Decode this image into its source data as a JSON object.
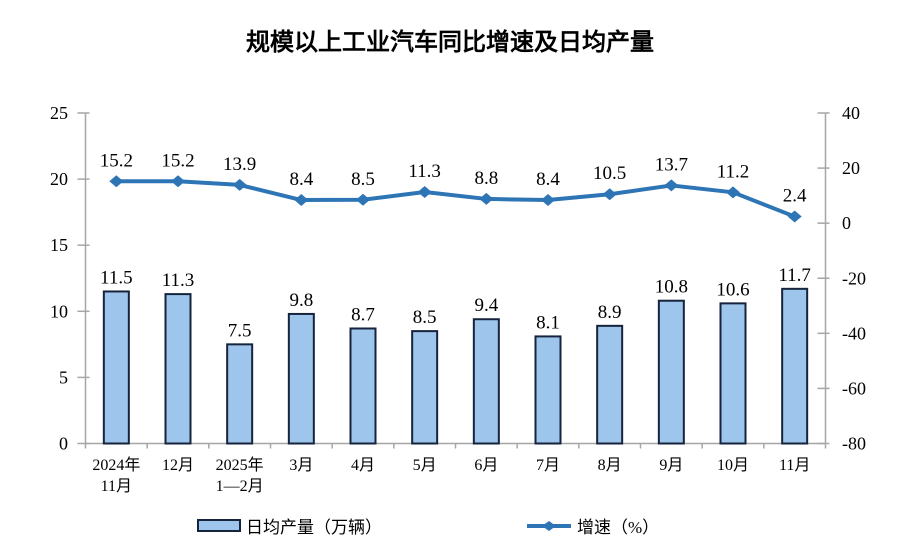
{
  "title": "规模以上工业汽车同比增速及日均产量",
  "legend": {
    "bar_label": "日均产量（万辆）",
    "line_label": "增速（%）"
  },
  "chart_data": {
    "type": "combo-bar-line",
    "title": "规模以上工业汽车同比增速及日均产量",
    "categories": [
      "2024年\n11月",
      "12月",
      "2025年\n1—2月",
      "3月",
      "4月",
      "5月",
      "6月",
      "7月",
      "8月",
      "9月",
      "10月",
      "11月"
    ],
    "series": [
      {
        "name": "日均产量（万辆）",
        "type": "bar",
        "axis": "left",
        "values": [
          11.5,
          11.3,
          7.5,
          9.8,
          8.7,
          8.5,
          9.4,
          8.1,
          8.9,
          10.8,
          10.6,
          11.7
        ]
      },
      {
        "name": "增速（%）",
        "type": "line",
        "axis": "right",
        "values": [
          15.2,
          15.2,
          13.9,
          8.4,
          8.5,
          11.3,
          8.8,
          8.4,
          10.5,
          13.7,
          11.2,
          2.4
        ]
      }
    ],
    "left_axis": {
      "min": 0,
      "max": 25,
      "step": 5,
      "ticks": [
        0,
        5,
        10,
        15,
        20,
        25
      ]
    },
    "right_axis": {
      "min": -80,
      "max": 40,
      "step": 20,
      "ticks": [
        -80,
        -60,
        -40,
        -20,
        0,
        20,
        40
      ]
    },
    "grid": false,
    "legend_position": "bottom",
    "colors": {
      "bar_fill": "#9EC6EC",
      "bar_border": "#16233C",
      "line": "#2E75B6",
      "axis": "#A6A6A6",
      "text": "#000000"
    }
  }
}
